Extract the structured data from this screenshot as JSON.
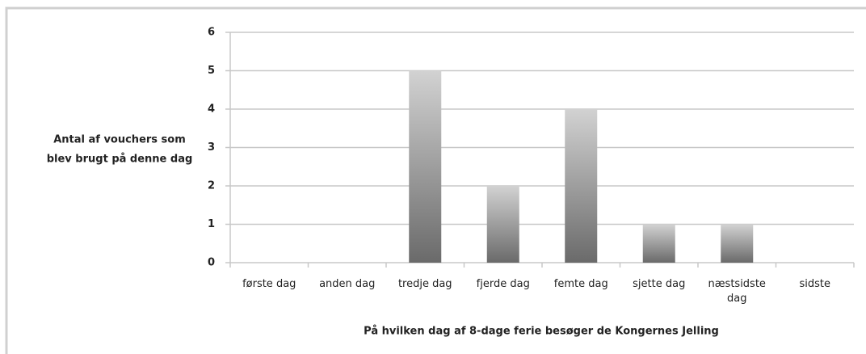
{
  "chart_data": {
    "type": "bar",
    "ylabel": [
      "Antal af vouchers som",
      "blev brugt på denne dag"
    ],
    "xlabel": "På hvilken dag af 8-dage ferie besøger de Kongernes Jelling",
    "categories": [
      "første dag",
      "anden dag",
      "tredje dag",
      "fjerde dag",
      "femte dag",
      "sjette dag",
      "næstsidste dag",
      "sidste"
    ],
    "values": [
      0,
      0,
      5,
      2,
      4,
      1,
      1,
      0
    ],
    "color": "#8a8a8a",
    "ylim": [
      0,
      6
    ],
    "yticks": [
      0,
      1,
      2,
      3,
      4,
      5,
      6
    ],
    "grid": true
  }
}
